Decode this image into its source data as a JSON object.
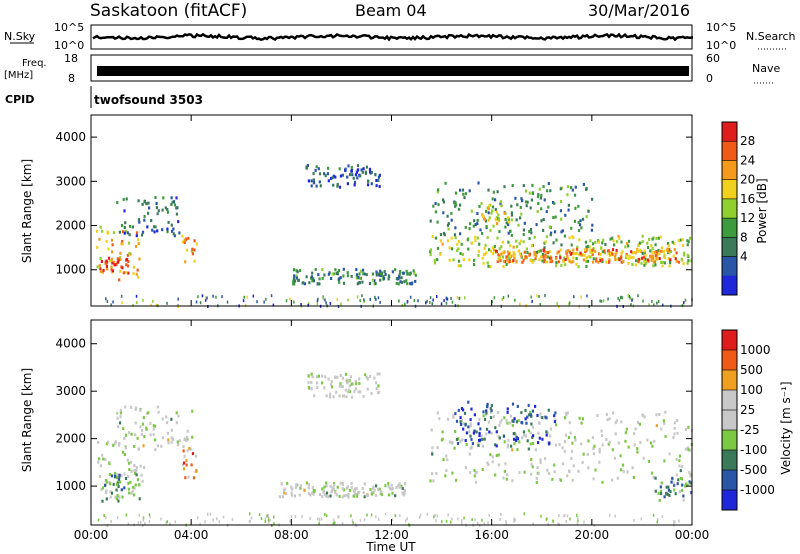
{
  "header": {
    "station": "Saskatoon (fitACF)",
    "beam": "Beam 04",
    "date": "30/Mar/2016"
  },
  "strips": {
    "nsky_label": "N.Sky",
    "nsky_ticks": [
      "10^5",
      "10^0"
    ],
    "nsearch_label": "N.Search",
    "nsearch_ticks": [
      "10^5",
      "10^0"
    ],
    "freq_label": "Freq.",
    "freq_unit": "[MHz]",
    "freq_ticks": [
      "18",
      "8"
    ],
    "nave_label": "Nave",
    "nave_ticks": [
      "60",
      "0"
    ],
    "cpid_label": "CPID",
    "cpid_value": "twofsound 3503"
  },
  "x_ticks": [
    "00:00",
    "04:00",
    "08:00",
    "12:00",
    "16:00",
    "20:00",
    "00:00"
  ],
  "x_axis_label": "Time UT",
  "chart_data": [
    {
      "type": "heatmap",
      "name": "power",
      "ylabel": "Slant Range [km]",
      "yticks": [
        1000,
        2000,
        3000,
        4000
      ],
      "ylim": [
        180,
        4500
      ],
      "xlim_hours": [
        0,
        24
      ],
      "colorbar_label": "Power [dB]",
      "colorbar_ticks": [
        "28",
        "24",
        "20",
        "16",
        "12",
        "8",
        "4"
      ],
      "colorbar_colors": [
        "#1f28d9",
        "#2a56a8",
        "#3a7a58",
        "#3d9a3d",
        "#8fcf2f",
        "#f0d21e",
        "#f49a1c",
        "#f05a18",
        "#e01d1d"
      ],
      "regions": [
        {
          "t": [
            0.2,
            2.0
          ],
          "r": [
            800,
            2000
          ],
          "level": 0.65
        },
        {
          "t": [
            0.3,
            1.5
          ],
          "r": [
            950,
            1300
          ],
          "level": 0.9
        },
        {
          "t": [
            1.0,
            3.5
          ],
          "r": [
            1800,
            2700
          ],
          "level": 0.25
        },
        {
          "t": [
            3.6,
            4.2
          ],
          "r": [
            1200,
            1800
          ],
          "level": 0.7
        },
        {
          "t": [
            8.5,
            11.5
          ],
          "r": [
            2900,
            3400
          ],
          "level": 0.2
        },
        {
          "t": [
            8.0,
            13.0
          ],
          "r": [
            700,
            1050
          ],
          "level": 0.3
        },
        {
          "t": [
            13.5,
            24.0
          ],
          "r": [
            1100,
            1800
          ],
          "level": 0.5
        },
        {
          "t": [
            13.5,
            20.0
          ],
          "r": [
            1800,
            3000
          ],
          "level": 0.3
        },
        {
          "t": [
            15.5,
            16.8
          ],
          "r": [
            1900,
            2600
          ],
          "level": 0.6
        },
        {
          "t": [
            16.0,
            23.5
          ],
          "r": [
            1200,
            1500
          ],
          "level": 0.75
        }
      ]
    },
    {
      "type": "heatmap",
      "name": "velocity",
      "ylabel": "Slant Range [km]",
      "yticks": [
        1000,
        2000,
        3000,
        4000
      ],
      "ylim": [
        180,
        4500
      ],
      "xlim_hours": [
        0,
        24
      ],
      "colorbar_label": "Velocity [m s⁻¹]",
      "colorbar_ticks": [
        "1000",
        "500",
        "100",
        "25",
        "-25",
        "-100",
        "-500",
        "-1000"
      ],
      "colorbar_colors": [
        "#1f28d9",
        "#2a56a8",
        "#3a7a58",
        "#7bc843",
        "#c8c8c8",
        "#c8c8c8",
        "#f0a020",
        "#f05a18",
        "#e01d1d"
      ],
      "regions": [
        {
          "t": [
            0.2,
            2.2
          ],
          "r": [
            800,
            2000
          ],
          "level": 0.5
        },
        {
          "t": [
            0.4,
            2.0
          ],
          "r": [
            700,
            1300
          ],
          "level": 0.35
        },
        {
          "t": [
            1.0,
            4.0
          ],
          "r": [
            1800,
            2700
          ],
          "level": 0.5
        },
        {
          "t": [
            3.6,
            4.2
          ],
          "r": [
            1200,
            1800
          ],
          "level": 0.75
        },
        {
          "t": [
            8.5,
            11.5
          ],
          "r": [
            2900,
            3400
          ],
          "level": 0.5
        },
        {
          "t": [
            7.5,
            12.5
          ],
          "r": [
            800,
            1100
          ],
          "level": 0.5
        },
        {
          "t": [
            13.5,
            24.0
          ],
          "r": [
            1100,
            2600
          ],
          "level": 0.5
        },
        {
          "t": [
            14.5,
            18.5
          ],
          "r": [
            1800,
            2800
          ],
          "level": 0.15
        },
        {
          "t": [
            22.5,
            24.0
          ],
          "r": [
            700,
            1200
          ],
          "level": 0.3
        }
      ]
    }
  ]
}
